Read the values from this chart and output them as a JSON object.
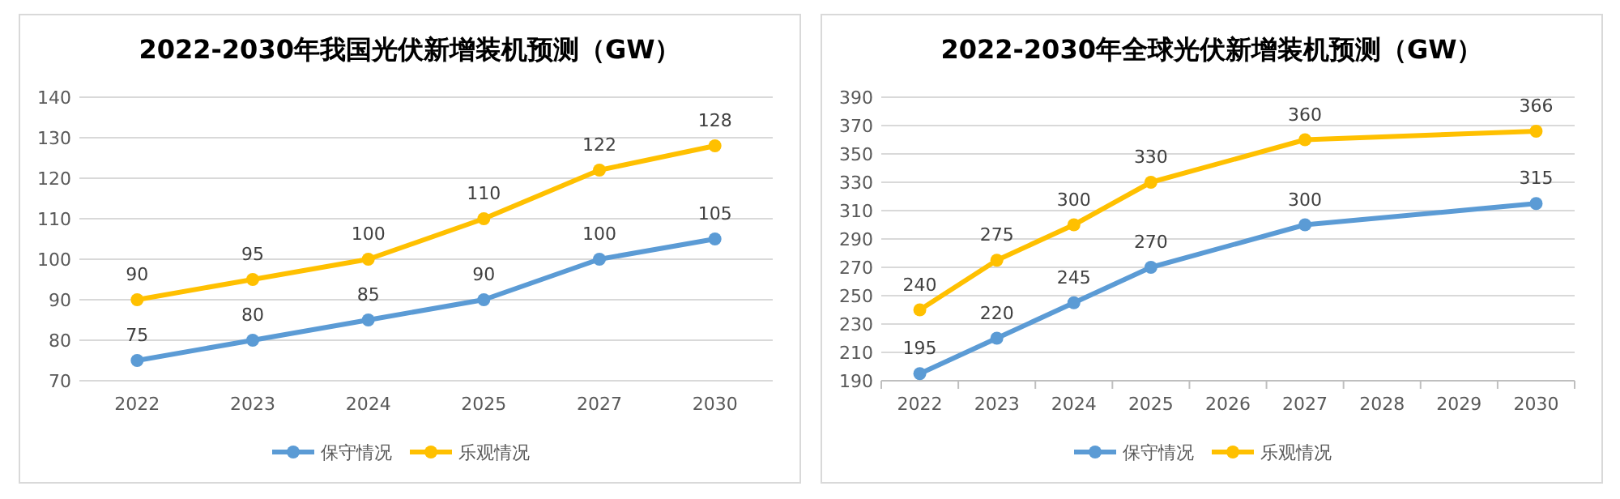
{
  "chart_data": [
    {
      "type": "line",
      "title": "2022-2030年我国光伏新增装机预测（GW）",
      "categories": [
        "2022",
        "2023",
        "2024",
        "2025",
        "2027",
        "2030"
      ],
      "series": [
        {
          "name": "保守情况",
          "color": "#5b9bd5",
          "values": [
            75,
            80,
            85,
            90,
            100,
            105
          ]
        },
        {
          "name": "乐观情况",
          "color": "#ffc000",
          "values": [
            90,
            95,
            100,
            110,
            122,
            128
          ]
        }
      ],
      "ylim": [
        70,
        140
      ],
      "yticks": [
        70,
        80,
        90,
        100,
        110,
        120,
        130,
        140
      ],
      "grid": "y",
      "legend": "bottom",
      "marker": "circle",
      "data_labels": true
    },
    {
      "type": "line",
      "title": "2022-2030年全球光伏新增装机预测（GW）",
      "categories": [
        "2022",
        "2023",
        "2024",
        "2025",
        "2026",
        "2027",
        "2028",
        "2029",
        "2030"
      ],
      "series": [
        {
          "name": "保守情况",
          "color": "#5b9bd5",
          "values": [
            195,
            220,
            245,
            270,
            null,
            300,
            null,
            null,
            315
          ]
        },
        {
          "name": "乐观情况",
          "color": "#ffc000",
          "values": [
            240,
            275,
            300,
            330,
            null,
            360,
            null,
            null,
            366
          ]
        }
      ],
      "ylim": [
        190,
        390
      ],
      "yticks": [
        190,
        210,
        230,
        250,
        270,
        290,
        310,
        330,
        350,
        370,
        390
      ],
      "grid": "y",
      "legend": "bottom",
      "marker": "circle",
      "data_labels": true
    }
  ]
}
